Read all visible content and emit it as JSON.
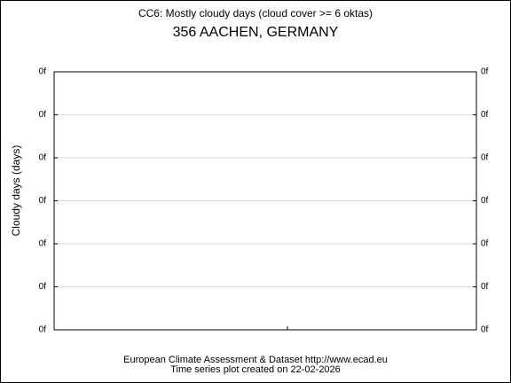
{
  "figure": {
    "title": "CC6: Mostly cloudy days (cloud cover >= 6 oktas)",
    "subtitle": "356 AACHEN, GERMANY",
    "y_axis_label": "Cloudy days (days)",
    "left_tick_labels": [
      "0f",
      "0f",
      "0f",
      "0f",
      "0f",
      "0f",
      "0f"
    ],
    "right_tick_labels": [
      "0f",
      "0f",
      "0f",
      "0f",
      "0f",
      "0f",
      "0f"
    ],
    "footer_line_1": "European Climate Assessment & Dataset  http://www.ecad.eu",
    "footer_line_2": "Time series plot created on 22-02-2026"
  }
}
